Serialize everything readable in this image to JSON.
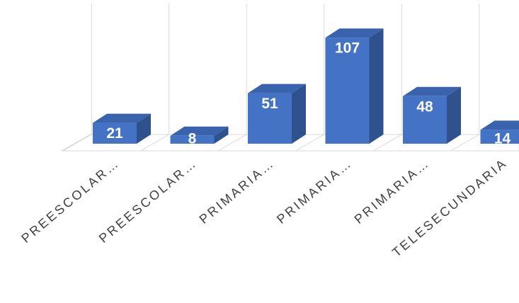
{
  "chart_data": {
    "type": "bar3d",
    "categories": [
      "PREESCOLAR…",
      "PREESCOLAR…",
      "PRIMARIA…",
      "PRIMARIA…",
      "PRIMARIA…",
      "TELESECUNDARIA"
    ],
    "values": [
      21,
      8,
      51,
      107,
      48,
      14
    ],
    "color": "#4472c4",
    "grid": true
  }
}
